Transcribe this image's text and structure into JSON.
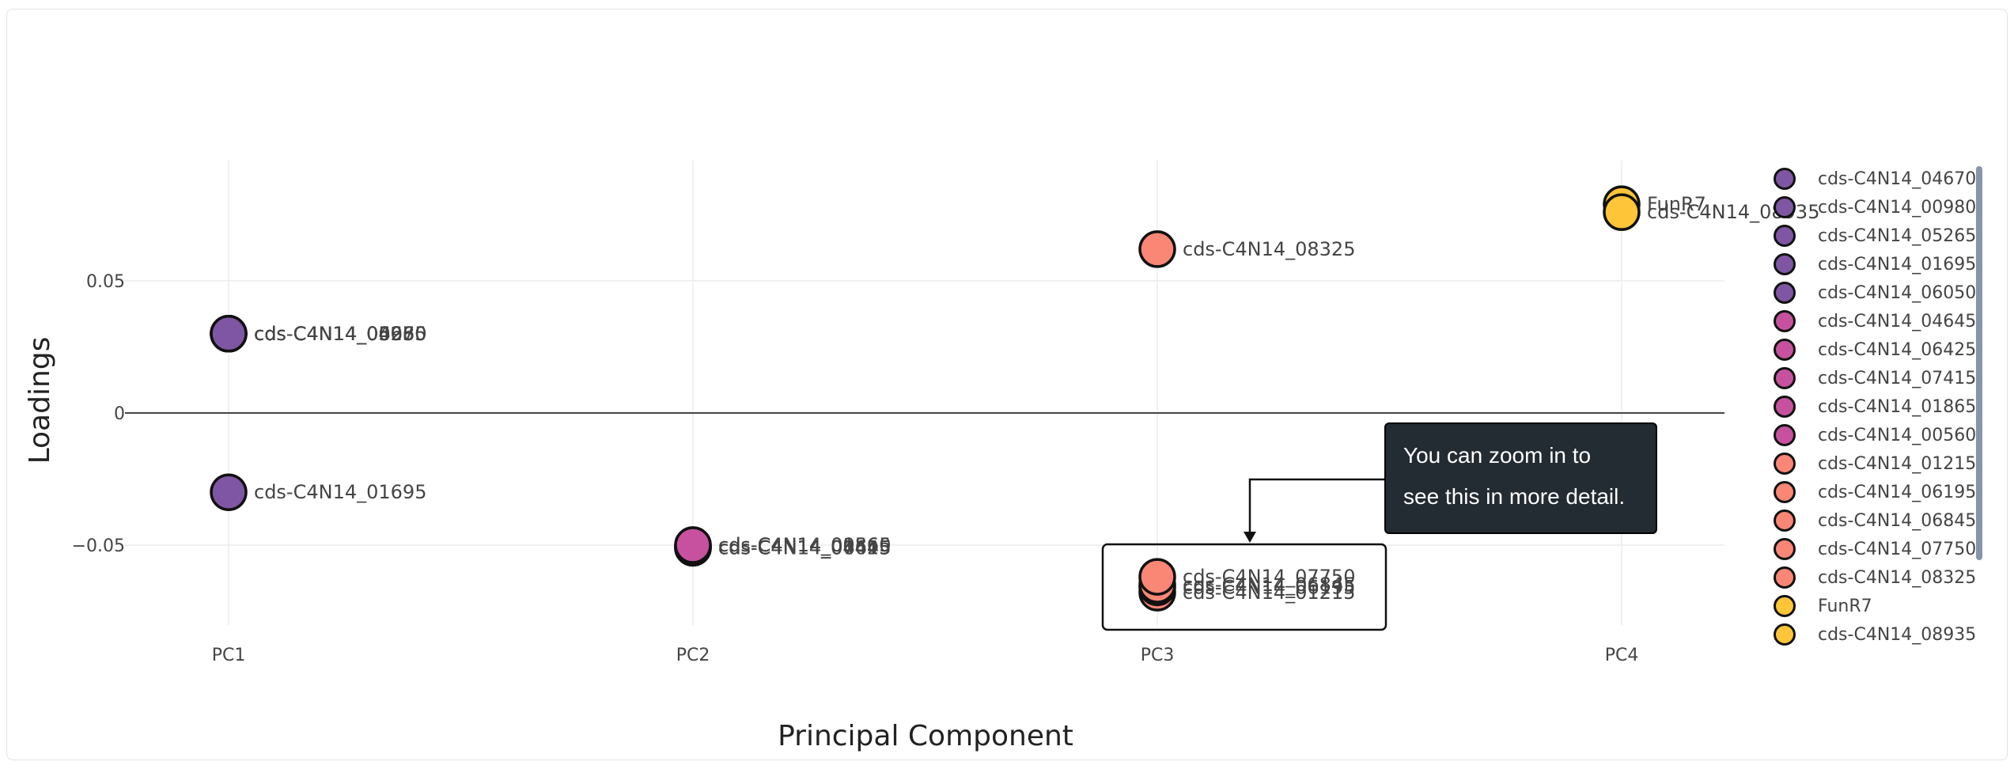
{
  "chart_data": {
    "type": "scatter",
    "xlabel": "Principal Component",
    "ylabel": "Loadings",
    "categories": [
      "PC1",
      "PC2",
      "PC3",
      "PC4"
    ],
    "yticks": [
      {
        "value": 0.05,
        "label": "0.05"
      },
      {
        "value": 0,
        "label": "0"
      },
      {
        "value": -0.05,
        "label": "−0.05"
      }
    ],
    "ylim": [
      -0.09,
      0.096
    ],
    "grid": true,
    "legend_position": "right",
    "series": [
      {
        "name": "cds-C4N14_04670",
        "color": "#7f56a3",
        "x": "PC1",
        "y": 0.03
      },
      {
        "name": "cds-C4N14_00980",
        "color": "#7f56a3",
        "x": "PC1",
        "y": 0.03
      },
      {
        "name": "cds-C4N14_05265",
        "color": "#7f56a3",
        "x": "PC1",
        "y": 0.03
      },
      {
        "name": "cds-C4N14_01695",
        "color": "#7f56a3",
        "x": "PC1",
        "y": -0.03
      },
      {
        "name": "cds-C4N14_06050",
        "color": "#7f56a3",
        "x": "PC1",
        "y": 0.03
      },
      {
        "name": "cds-C4N14_04645",
        "color": "#c7519f",
        "x": "PC2",
        "y": -0.051
      },
      {
        "name": "cds-C4N14_06425",
        "color": "#c7519f",
        "x": "PC2",
        "y": -0.051
      },
      {
        "name": "cds-C4N14_07415",
        "color": "#c7519f",
        "x": "PC2",
        "y": -0.051
      },
      {
        "name": "cds-C4N14_01865",
        "color": "#c7519f",
        "x": "PC2",
        "y": -0.05
      },
      {
        "name": "cds-C4N14_00560",
        "color": "#c7519f",
        "x": "PC2",
        "y": -0.05
      },
      {
        "name": "cds-C4N14_01215",
        "color": "#fa8675",
        "x": "PC3",
        "y": -0.068
      },
      {
        "name": "cds-C4N14_06195",
        "color": "#fa8675",
        "x": "PC3",
        "y": -0.066
      },
      {
        "name": "cds-C4N14_06845",
        "color": "#fa8675",
        "x": "PC3",
        "y": -0.065
      },
      {
        "name": "cds-C4N14_07750",
        "color": "#fa8675",
        "x": "PC3",
        "y": -0.062
      },
      {
        "name": "cds-C4N14_08325",
        "color": "#fa8675",
        "x": "PC3",
        "y": 0.062
      },
      {
        "name": "FunR7",
        "color": "#fec538",
        "x": "PC4",
        "y": 0.079
      },
      {
        "name": "cds-C4N14_08935",
        "color": "#fec538",
        "x": "PC4",
        "y": 0.076
      }
    ]
  },
  "annotation": {
    "text_line1": "You can zoom in to",
    "text_line2": "see this in more detail."
  },
  "colors": {
    "purple": "#7f56a3",
    "magenta": "#c7519f",
    "salmon": "#fa8675",
    "yellow": "#fec538",
    "tooltip_bg": "#232b33"
  }
}
